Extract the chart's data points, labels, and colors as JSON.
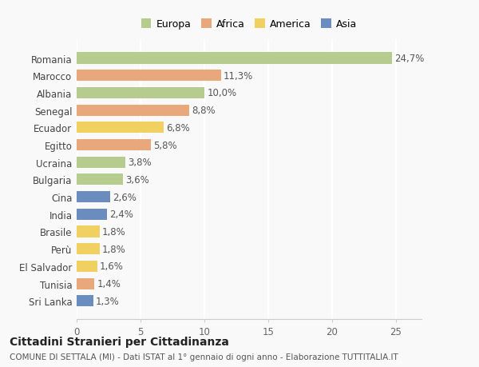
{
  "countries": [
    "Romania",
    "Marocco",
    "Albania",
    "Senegal",
    "Ecuador",
    "Egitto",
    "Ucraina",
    "Bulgaria",
    "Cina",
    "India",
    "Brasile",
    "Perù",
    "El Salvador",
    "Tunisia",
    "Sri Lanka"
  ],
  "values": [
    24.7,
    11.3,
    10.0,
    8.8,
    6.8,
    5.8,
    3.8,
    3.6,
    2.6,
    2.4,
    1.8,
    1.8,
    1.6,
    1.4,
    1.3
  ],
  "labels": [
    "24,7%",
    "11,3%",
    "10,0%",
    "8,8%",
    "6,8%",
    "5,8%",
    "3,8%",
    "3,6%",
    "2,6%",
    "2,4%",
    "1,8%",
    "1,8%",
    "1,6%",
    "1,4%",
    "1,3%"
  ],
  "continents": [
    "Europa",
    "Africa",
    "Europa",
    "Africa",
    "America",
    "Africa",
    "Europa",
    "Europa",
    "Asia",
    "Asia",
    "America",
    "America",
    "America",
    "Africa",
    "Asia"
  ],
  "colors": {
    "Europa": "#b5cc8e",
    "Africa": "#e8a87c",
    "America": "#f0d060",
    "Asia": "#6b8cbf"
  },
  "xlim": [
    0,
    27
  ],
  "xticks": [
    0,
    5,
    10,
    15,
    20,
    25
  ],
  "title": "Cittadini Stranieri per Cittadinanza",
  "subtitle": "COMUNE DI SETTALA (MI) - Dati ISTAT al 1° gennaio di ogni anno - Elaborazione TUTTITALIA.IT",
  "background_color": "#f9f9f9",
  "bar_height": 0.65,
  "label_fontsize": 8.5,
  "ytick_fontsize": 8.5,
  "xtick_fontsize": 8.5,
  "title_fontsize": 10,
  "subtitle_fontsize": 7.5,
  "legend_fontsize": 9
}
